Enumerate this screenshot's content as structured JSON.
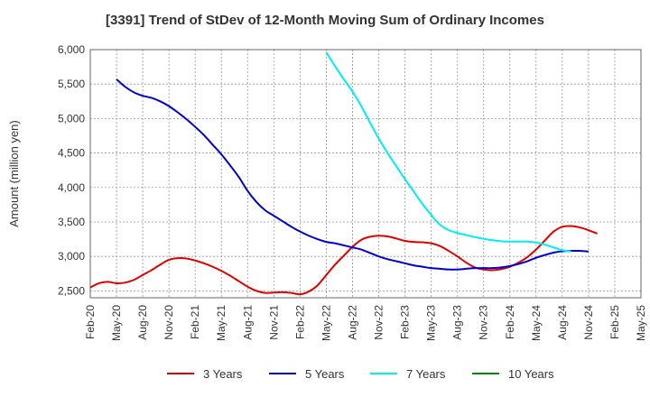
{
  "chart_data": {
    "type": "line",
    "title": "[3391]  Trend of StDev of 12-Month Moving Sum of Ordinary Incomes",
    "xlabel": "",
    "ylabel": "Amount (million yen)",
    "ylim": [
      2400,
      6000
    ],
    "yticks": [
      "2,500",
      "3,000",
      "3,500",
      "4,000",
      "4,500",
      "5,000",
      "5,500",
      "6,000"
    ],
    "ytick_values": [
      2500,
      3000,
      3500,
      4000,
      4500,
      5000,
      5500,
      6000
    ],
    "xticks": [
      "Feb-20",
      "May-20",
      "Aug-20",
      "Nov-20",
      "Feb-21",
      "May-21",
      "Aug-21",
      "Nov-21",
      "Feb-22",
      "May-22",
      "Aug-22",
      "Nov-22",
      "Feb-23",
      "May-23",
      "Aug-23",
      "Nov-23",
      "Feb-24",
      "May-24",
      "Aug-24",
      "Nov-24",
      "Feb-25",
      "May-25"
    ],
    "grid": true,
    "legend_position": "bottom",
    "series": [
      {
        "name": "3 Years",
        "color": "#dd0000",
        "start_month": 0,
        "values": [
          2550,
          2610,
          2630,
          2610,
          2620,
          2660,
          2730,
          2800,
          2880,
          2950,
          2975,
          2970,
          2940,
          2900,
          2850,
          2790,
          2720,
          2640,
          2560,
          2500,
          2470,
          2475,
          2480,
          2470,
          2450,
          2490,
          2580,
          2730,
          2880,
          3010,
          3140,
          3240,
          3285,
          3300,
          3290,
          3260,
          3225,
          3210,
          3205,
          3190,
          3150,
          3080,
          3000,
          2910,
          2840,
          2810,
          2800,
          2815,
          2850,
          2910,
          2990,
          3100,
          3230,
          3360,
          3430,
          3440,
          3420,
          3380,
          3330
        ]
      },
      {
        "name": "5 Years",
        "color": "#0000cc",
        "start_month": 3,
        "values": [
          5570,
          5460,
          5380,
          5330,
          5300,
          5250,
          5180,
          5090,
          4990,
          4880,
          4760,
          4620,
          4480,
          4320,
          4150,
          3950,
          3790,
          3670,
          3590,
          3510,
          3430,
          3360,
          3300,
          3250,
          3210,
          3190,
          3160,
          3130,
          3100,
          3050,
          3000,
          2960,
          2930,
          2900,
          2870,
          2850,
          2830,
          2820,
          2810,
          2810,
          2820,
          2830,
          2830,
          2830,
          2840,
          2860,
          2890,
          2930,
          2980,
          3020,
          3055,
          3075,
          3080,
          3080,
          3070
        ]
      },
      {
        "name": "7 Years",
        "color": "#00eeee",
        "start_month": 27,
        "values": [
          5960,
          5760,
          5570,
          5390,
          5180,
          4940,
          4710,
          4500,
          4310,
          4120,
          3940,
          3760,
          3600,
          3460,
          3380,
          3340,
          3310,
          3280,
          3255,
          3235,
          3220,
          3215,
          3215,
          3215,
          3200,
          3170,
          3130,
          3090,
          3070
        ]
      },
      {
        "name": "10 Years",
        "color": "#008800",
        "start_month": 0,
        "values": []
      }
    ]
  }
}
